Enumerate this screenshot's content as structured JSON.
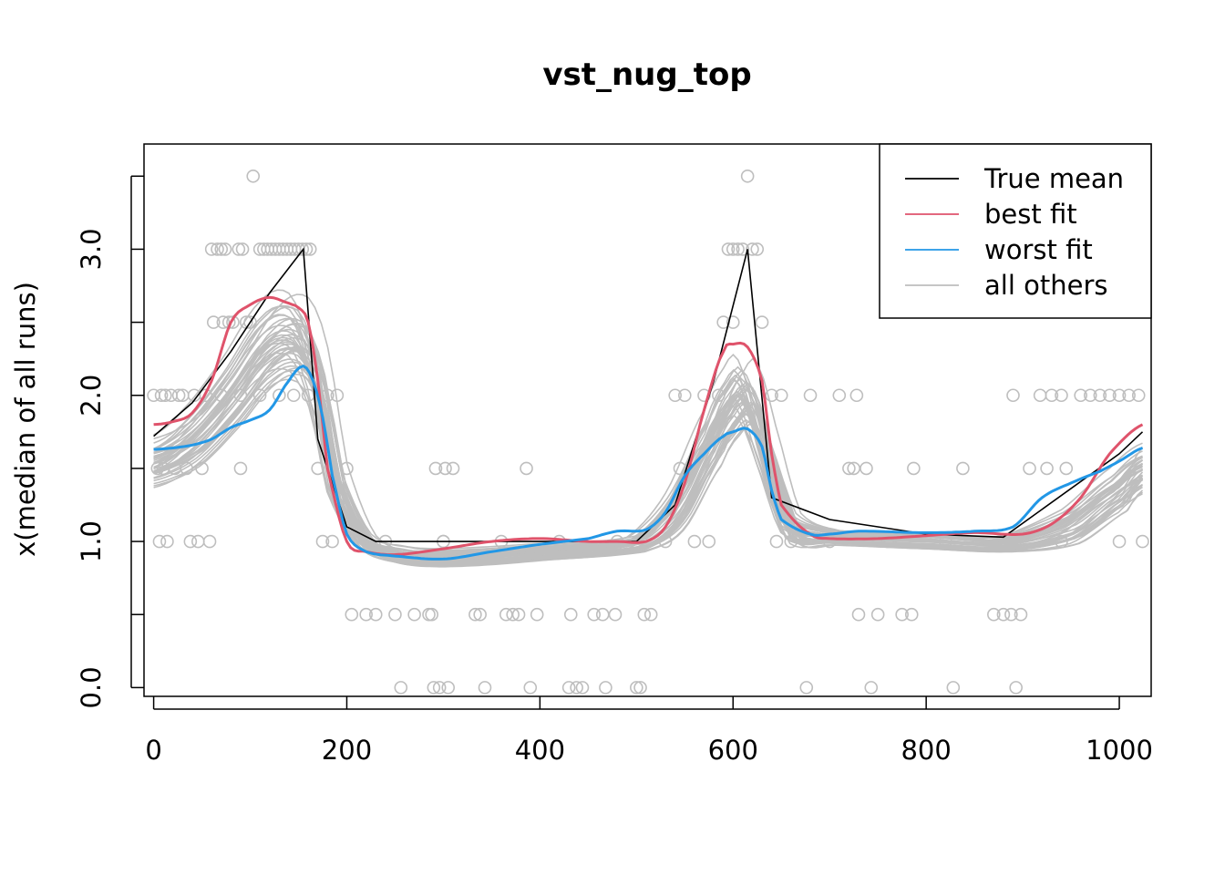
{
  "chart_data": {
    "type": "line",
    "title": "vst_nug_top",
    "xlabel": "",
    "ylabel": "x(median of all runs)",
    "xlim": [
      -10,
      1033
    ],
    "ylim": [
      -0.06,
      3.72
    ],
    "x_ticks": [
      0,
      200,
      400,
      600,
      800,
      1000
    ],
    "y_ticks": [
      0.0,
      0.5,
      1.0,
      1.5,
      2.0,
      2.5,
      3.0,
      3.5
    ],
    "y_tick_labels": [
      "0.0",
      "1.0",
      "2.0",
      "3.0"
    ],
    "legend_position": "top-right",
    "legend": [
      {
        "label": "True mean",
        "color": "#000000"
      },
      {
        "label": "best fit",
        "color": "#DF536B"
      },
      {
        "label": "worst fit",
        "color": "#2297E6"
      },
      {
        "label": "all others",
        "color": "#BEBEBE"
      }
    ],
    "series": [
      {
        "name": "True mean",
        "color": "#000000",
        "x": [
          0,
          40,
          80,
          120,
          155,
          170,
          200,
          230,
          400,
          500,
          540,
          580,
          615,
          640,
          700,
          800,
          880,
          1000,
          1024
        ],
        "y": [
          1.72,
          1.95,
          2.3,
          2.7,
          3.0,
          1.7,
          1.1,
          1.0,
          1.0,
          1.0,
          1.25,
          2.1,
          3.0,
          1.3,
          1.15,
          1.05,
          1.03,
          1.6,
          1.75
        ]
      },
      {
        "name": "best fit",
        "color": "#DF536B",
        "x": [
          0,
          20,
          40,
          60,
          80,
          100,
          120,
          140,
          150,
          160,
          170,
          180,
          200,
          220,
          250,
          300,
          350,
          400,
          450,
          480,
          510,
          530,
          550,
          570,
          590,
          600,
          615,
          630,
          640,
          650,
          680,
          700,
          750,
          800,
          850,
          900,
          930,
          960,
          990,
          1024
        ],
        "y": [
          1.8,
          1.82,
          1.88,
          2.1,
          2.5,
          2.62,
          2.67,
          2.63,
          2.6,
          2.5,
          2.1,
          1.5,
          1.0,
          0.93,
          0.91,
          0.95,
          1.0,
          1.02,
          1.0,
          1.0,
          1.0,
          1.1,
          1.4,
          1.9,
          2.3,
          2.35,
          2.33,
          2.1,
          1.6,
          1.25,
          1.05,
          1.02,
          1.02,
          1.04,
          1.06,
          1.05,
          1.12,
          1.3,
          1.6,
          1.8
        ]
      },
      {
        "name": "worst fit",
        "color": "#2297E6",
        "x": [
          0,
          20,
          40,
          60,
          80,
          100,
          120,
          140,
          155,
          165,
          175,
          185,
          200,
          220,
          250,
          300,
          350,
          400,
          450,
          480,
          510,
          530,
          550,
          570,
          590,
          600,
          615,
          630,
          640,
          650,
          680,
          700,
          730,
          800,
          850,
          890,
          920,
          950,
          980,
          1000,
          1024
        ],
        "y": [
          1.63,
          1.64,
          1.66,
          1.7,
          1.78,
          1.83,
          1.9,
          2.1,
          2.2,
          2.1,
          1.85,
          1.45,
          1.05,
          0.93,
          0.9,
          0.88,
          0.93,
          0.98,
          1.02,
          1.07,
          1.08,
          1.2,
          1.45,
          1.6,
          1.72,
          1.75,
          1.77,
          1.65,
          1.35,
          1.15,
          1.05,
          1.05,
          1.07,
          1.06,
          1.07,
          1.1,
          1.3,
          1.4,
          1.48,
          1.55,
          1.64
        ]
      },
      {
        "name": "all others",
        "color": "#BEBEBE",
        "x": [
          0,
          40,
          80,
          120,
          150,
          170,
          190,
          220,
          260,
          300,
          400,
          500,
          540,
          580,
          600,
          615,
          640,
          660,
          700,
          800,
          880,
          950,
          1000,
          1024
        ],
        "y": [
          1.55,
          1.7,
          2.0,
          2.35,
          2.4,
          2.1,
          1.4,
          1.0,
          0.9,
          0.88,
          0.92,
          0.98,
          1.2,
          1.7,
          1.95,
          2.0,
          1.5,
          1.1,
          1.03,
          1.0,
          0.98,
          1.1,
          1.35,
          1.5
        ]
      }
    ],
    "observations_color": "#BEBEBE",
    "observations": [
      [
        0,
        2.0
      ],
      [
        4,
        1.5
      ],
      [
        6,
        1.0
      ],
      [
        8,
        2.0
      ],
      [
        10,
        1.5
      ],
      [
        12,
        2.0
      ],
      [
        14,
        1.0
      ],
      [
        18,
        2.0
      ],
      [
        22,
        1.5
      ],
      [
        26,
        2.0
      ],
      [
        30,
        2.0
      ],
      [
        34,
        1.5
      ],
      [
        38,
        1.0
      ],
      [
        42,
        2.0
      ],
      [
        46,
        1.0
      ],
      [
        50,
        1.5
      ],
      [
        54,
        2.0
      ],
      [
        58,
        1.0
      ],
      [
        60,
        3.0
      ],
      [
        62,
        2.5
      ],
      [
        66,
        3.0
      ],
      [
        70,
        3.0
      ],
      [
        72,
        2.5
      ],
      [
        74,
        3.0
      ],
      [
        78,
        2.5
      ],
      [
        82,
        2.5
      ],
      [
        88,
        3.0
      ],
      [
        90,
        1.5
      ],
      [
        92,
        3.0
      ],
      [
        96,
        2.5
      ],
      [
        100,
        2.5
      ],
      [
        103,
        3.5
      ],
      [
        110,
        3.0
      ],
      [
        114,
        3.0
      ],
      [
        118,
        3.0
      ],
      [
        122,
        3.0
      ],
      [
        126,
        3.0
      ],
      [
        130,
        3.0
      ],
      [
        134,
        3.0
      ],
      [
        138,
        3.0
      ],
      [
        142,
        3.0
      ],
      [
        146,
        3.0
      ],
      [
        150,
        3.0
      ],
      [
        154,
        3.0
      ],
      [
        158,
        3.0
      ],
      [
        162,
        3.0
      ],
      [
        70,
        2.0
      ],
      [
        90,
        2.0
      ],
      [
        110,
        2.0
      ],
      [
        130,
        2.0
      ],
      [
        145,
        2.0
      ],
      [
        160,
        2.0
      ],
      [
        170,
        1.5
      ],
      [
        175,
        1.0
      ],
      [
        180,
        2.0
      ],
      [
        185,
        1.0
      ],
      [
        190,
        2.0
      ],
      [
        200,
        1.5
      ],
      [
        205,
        0.5
      ],
      [
        220,
        0.5
      ],
      [
        230,
        0.5
      ],
      [
        250,
        0.5
      ],
      [
        256,
        0.0
      ],
      [
        270,
        0.5
      ],
      [
        285,
        0.5
      ],
      [
        288,
        0.5
      ],
      [
        290,
        0.0
      ],
      [
        292,
        1.5
      ],
      [
        296,
        0.0
      ],
      [
        302,
        1.5
      ],
      [
        305,
        0.0
      ],
      [
        310,
        1.5
      ],
      [
        333,
        0.5
      ],
      [
        338,
        0.5
      ],
      [
        343,
        0.0
      ],
      [
        365,
        0.5
      ],
      [
        372,
        0.5
      ],
      [
        378,
        0.5
      ],
      [
        386,
        1.5
      ],
      [
        390,
        0.0
      ],
      [
        397,
        0.5
      ],
      [
        430,
        0.0
      ],
      [
        432,
        0.5
      ],
      [
        438,
        0.0
      ],
      [
        444,
        0.0
      ],
      [
        456,
        0.5
      ],
      [
        465,
        0.5
      ],
      [
        468,
        0.0
      ],
      [
        478,
        0.5
      ],
      [
        500,
        0.0
      ],
      [
        504,
        0.0
      ],
      [
        508,
        0.5
      ],
      [
        515,
        0.5
      ],
      [
        540,
        2.0
      ],
      [
        545,
        1.5
      ],
      [
        550,
        2.0
      ],
      [
        560,
        1.0
      ],
      [
        575,
        1.0
      ],
      [
        595,
        3.0
      ],
      [
        600,
        3.0
      ],
      [
        605,
        3.0
      ],
      [
        610,
        3.0
      ],
      [
        615,
        3.5
      ],
      [
        620,
        3.0
      ],
      [
        625,
        3.0
      ],
      [
        630,
        2.5
      ],
      [
        590,
        2.5
      ],
      [
        600,
        2.5
      ],
      [
        640,
        2.0
      ],
      [
        645,
        1.0
      ],
      [
        650,
        2.0
      ],
      [
        660,
        1.0
      ],
      [
        676,
        0.0
      ],
      [
        680,
        2.0
      ],
      [
        710,
        2.0
      ],
      [
        720,
        1.5
      ],
      [
        725,
        1.5
      ],
      [
        728,
        2.0
      ],
      [
        730,
        0.5
      ],
      [
        738,
        1.5
      ],
      [
        743,
        0.0
      ],
      [
        750,
        0.5
      ],
      [
        775,
        0.5
      ],
      [
        785,
        0.5
      ],
      [
        787,
        1.5
      ],
      [
        828,
        0.0
      ],
      [
        838,
        1.5
      ],
      [
        870,
        0.5
      ],
      [
        880,
        0.5
      ],
      [
        888,
        0.5
      ],
      [
        890,
        2.0
      ],
      [
        893,
        0.0
      ],
      [
        898,
        0.5
      ],
      [
        907,
        1.5
      ],
      [
        918,
        2.0
      ],
      [
        925,
        1.5
      ],
      [
        930,
        2.0
      ],
      [
        940,
        2.0
      ],
      [
        945,
        1.5
      ],
      [
        960,
        2.0
      ],
      [
        970,
        2.0
      ],
      [
        980,
        2.0
      ],
      [
        990,
        2.0
      ],
      [
        1000,
        2.0
      ],
      [
        1010,
        2.0
      ],
      [
        1020,
        2.0
      ],
      [
        700,
        1.0
      ],
      [
        760,
        1.0
      ],
      [
        820,
        1.0
      ],
      [
        880,
        1.0
      ],
      [
        940,
        1.0
      ],
      [
        1000,
        1.0
      ],
      [
        1024,
        1.0
      ],
      [
        240,
        1.0
      ],
      [
        300,
        1.0
      ],
      [
        360,
        1.0
      ],
      [
        420,
        1.0
      ],
      [
        480,
        1.0
      ],
      [
        530,
        1.0
      ],
      [
        570,
        2.0
      ],
      [
        585,
        2.0
      ],
      [
        300,
        1.0
      ]
    ]
  }
}
